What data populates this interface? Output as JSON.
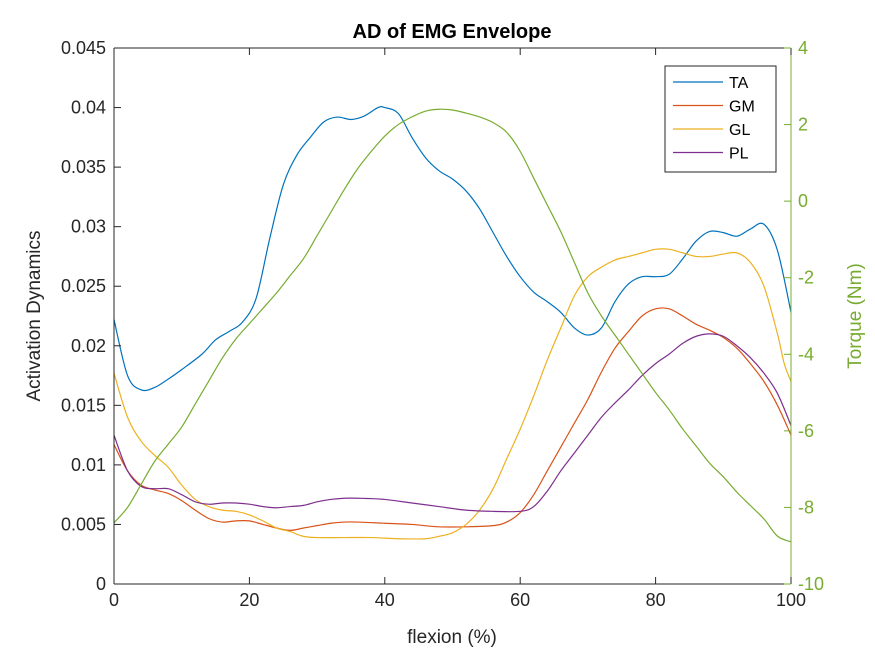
{
  "chart_data": {
    "type": "line",
    "title": "AD of EMG Envelope",
    "xlabel": "flexion (%)",
    "ylabel": "Activation Dynamics",
    "y2label": "Torque (Nm)",
    "xlim": [
      0,
      100
    ],
    "ylim": [
      0,
      0.045
    ],
    "y2lim": [
      -10,
      4
    ],
    "xticks": [
      "0",
      "20",
      "40",
      "60",
      "80",
      "100"
    ],
    "yticks": [
      "0",
      "0.005",
      "0.01",
      "0.015",
      "0.02",
      "0.025",
      "0.03",
      "0.035",
      "0.04",
      "0.045"
    ],
    "y2ticks": [
      "-10",
      "-8",
      "-6",
      "-4",
      "-2",
      "0",
      "2",
      "4"
    ],
    "legend_position": "top-right",
    "grid": false,
    "series": [
      {
        "name": "TA",
        "axis": "left",
        "color": "#0072BD",
        "points": [
          [
            0,
            0.0222
          ],
          [
            2,
            0.0175
          ],
          [
            4,
            0.0163
          ],
          [
            6,
            0.0165
          ],
          [
            8,
            0.0172
          ],
          [
            10,
            0.018
          ],
          [
            13,
            0.0193
          ],
          [
            15,
            0.0205
          ],
          [
            17,
            0.0212
          ],
          [
            19,
            0.022
          ],
          [
            21,
            0.024
          ],
          [
            23,
            0.029
          ],
          [
            25,
            0.0335
          ],
          [
            27,
            0.036
          ],
          [
            29,
            0.0375
          ],
          [
            31,
            0.0388
          ],
          [
            33,
            0.0392
          ],
          [
            35,
            0.039
          ],
          [
            37,
            0.0393
          ],
          [
            39,
            0.04
          ],
          [
            40,
            0.04
          ],
          [
            42,
            0.0395
          ],
          [
            44,
            0.0375
          ],
          [
            46,
            0.0358
          ],
          [
            48,
            0.0347
          ],
          [
            50,
            0.034
          ],
          [
            52,
            0.033
          ],
          [
            54,
            0.0315
          ],
          [
            56,
            0.0295
          ],
          [
            58,
            0.0275
          ],
          [
            60,
            0.0258
          ],
          [
            62,
            0.0245
          ],
          [
            64,
            0.0237
          ],
          [
            66,
            0.0228
          ],
          [
            68,
            0.0215
          ],
          [
            70,
            0.0209
          ],
          [
            72,
            0.0215
          ],
          [
            74,
            0.0237
          ],
          [
            76,
            0.0252
          ],
          [
            78,
            0.0258
          ],
          [
            80,
            0.0258
          ],
          [
            82,
            0.026
          ],
          [
            84,
            0.0273
          ],
          [
            86,
            0.0288
          ],
          [
            88,
            0.0296
          ],
          [
            90,
            0.0295
          ],
          [
            92,
            0.0292
          ],
          [
            94,
            0.0298
          ],
          [
            96,
            0.0302
          ],
          [
            98,
            0.028
          ],
          [
            100,
            0.0228
          ]
        ]
      },
      {
        "name": "GM",
        "axis": "left",
        "color": "#D95319",
        "points": [
          [
            0,
            0.0117
          ],
          [
            2,
            0.0095
          ],
          [
            4,
            0.0083
          ],
          [
            6,
            0.0079
          ],
          [
            8,
            0.0076
          ],
          [
            10,
            0.007
          ],
          [
            12,
            0.0062
          ],
          [
            14,
            0.0055
          ],
          [
            16,
            0.0052
          ],
          [
            18,
            0.0053
          ],
          [
            20,
            0.0053
          ],
          [
            22,
            0.005
          ],
          [
            24,
            0.0047
          ],
          [
            26,
            0.0045
          ],
          [
            28,
            0.0047
          ],
          [
            30,
            0.0049
          ],
          [
            32,
            0.0051
          ],
          [
            34,
            0.0052
          ],
          [
            36,
            0.0052
          ],
          [
            40,
            0.0051
          ],
          [
            44,
            0.005
          ],
          [
            48,
            0.0048
          ],
          [
            52,
            0.0048
          ],
          [
            56,
            0.0049
          ],
          [
            58,
            0.0052
          ],
          [
            60,
            0.006
          ],
          [
            62,
            0.0075
          ],
          [
            64,
            0.0095
          ],
          [
            66,
            0.0115
          ],
          [
            68,
            0.0135
          ],
          [
            70,
            0.0155
          ],
          [
            72,
            0.0178
          ],
          [
            74,
            0.0198
          ],
          [
            76,
            0.0212
          ],
          [
            78,
            0.0225
          ],
          [
            80,
            0.0231
          ],
          [
            82,
            0.0231
          ],
          [
            84,
            0.0225
          ],
          [
            86,
            0.0218
          ],
          [
            88,
            0.0213
          ],
          [
            90,
            0.0207
          ],
          [
            92,
            0.0198
          ],
          [
            94,
            0.0185
          ],
          [
            96,
            0.017
          ],
          [
            98,
            0.015
          ],
          [
            100,
            0.0125
          ]
        ]
      },
      {
        "name": "GL",
        "axis": "left",
        "color": "#EDB120",
        "points": [
          [
            0,
            0.0177
          ],
          [
            2,
            0.014
          ],
          [
            4,
            0.012
          ],
          [
            6,
            0.0108
          ],
          [
            8,
            0.0098
          ],
          [
            10,
            0.0083
          ],
          [
            12,
            0.0071
          ],
          [
            14,
            0.0065
          ],
          [
            16,
            0.0062
          ],
          [
            18,
            0.0061
          ],
          [
            20,
            0.0058
          ],
          [
            22,
            0.0053
          ],
          [
            24,
            0.0047
          ],
          [
            26,
            0.0044
          ],
          [
            28,
            0.004
          ],
          [
            30,
            0.0039
          ],
          [
            34,
            0.0039
          ],
          [
            38,
            0.0039
          ],
          [
            42,
            0.0038
          ],
          [
            46,
            0.0038
          ],
          [
            48,
            0.004
          ],
          [
            50,
            0.0043
          ],
          [
            52,
            0.005
          ],
          [
            54,
            0.0062
          ],
          [
            56,
            0.008
          ],
          [
            58,
            0.0105
          ],
          [
            60,
            0.013
          ],
          [
            62,
            0.0158
          ],
          [
            64,
            0.0188
          ],
          [
            66,
            0.0215
          ],
          [
            68,
            0.0242
          ],
          [
            70,
            0.0258
          ],
          [
            72,
            0.0266
          ],
          [
            74,
            0.0272
          ],
          [
            76,
            0.0275
          ],
          [
            78,
            0.0278
          ],
          [
            80,
            0.0281
          ],
          [
            82,
            0.0281
          ],
          [
            84,
            0.0278
          ],
          [
            86,
            0.0275
          ],
          [
            88,
            0.0275
          ],
          [
            90,
            0.0277
          ],
          [
            92,
            0.0278
          ],
          [
            94,
            0.027
          ],
          [
            96,
            0.025
          ],
          [
            98,
            0.021
          ],
          [
            99,
            0.0185
          ],
          [
            100,
            0.017
          ]
        ]
      },
      {
        "name": "PL",
        "axis": "left",
        "color": "#7E2F8E",
        "points": [
          [
            0,
            0.0125
          ],
          [
            2,
            0.0095
          ],
          [
            4,
            0.0082
          ],
          [
            6,
            0.008
          ],
          [
            8,
            0.008
          ],
          [
            10,
            0.0075
          ],
          [
            12,
            0.0069
          ],
          [
            14,
            0.0067
          ],
          [
            16,
            0.0068
          ],
          [
            18,
            0.0068
          ],
          [
            20,
            0.0067
          ],
          [
            22,
            0.0065
          ],
          [
            24,
            0.0064
          ],
          [
            26,
            0.0065
          ],
          [
            28,
            0.0066
          ],
          [
            30,
            0.0069
          ],
          [
            32,
            0.0071
          ],
          [
            34,
            0.0072
          ],
          [
            36,
            0.0072
          ],
          [
            40,
            0.0071
          ],
          [
            44,
            0.0068
          ],
          [
            48,
            0.0065
          ],
          [
            52,
            0.0062
          ],
          [
            56,
            0.0061
          ],
          [
            60,
            0.0061
          ],
          [
            62,
            0.0065
          ],
          [
            64,
            0.0078
          ],
          [
            66,
            0.0095
          ],
          [
            68,
            0.011
          ],
          [
            70,
            0.0125
          ],
          [
            72,
            0.014
          ],
          [
            74,
            0.0152
          ],
          [
            76,
            0.0163
          ],
          [
            78,
            0.0175
          ],
          [
            80,
            0.0185
          ],
          [
            82,
            0.0193
          ],
          [
            84,
            0.0202
          ],
          [
            86,
            0.0208
          ],
          [
            88,
            0.021
          ],
          [
            90,
            0.0208
          ],
          [
            92,
            0.02
          ],
          [
            94,
            0.019
          ],
          [
            96,
            0.0177
          ],
          [
            98,
            0.016
          ],
          [
            100,
            0.0133
          ]
        ]
      },
      {
        "name": "",
        "axis": "right",
        "color": "#77AC30",
        "points": [
          [
            0,
            -8.4
          ],
          [
            2,
            -8.0
          ],
          [
            4,
            -7.4
          ],
          [
            6,
            -6.8
          ],
          [
            8,
            -6.35
          ],
          [
            10,
            -5.9
          ],
          [
            12,
            -5.3
          ],
          [
            14,
            -4.7
          ],
          [
            16,
            -4.1
          ],
          [
            18,
            -3.6
          ],
          [
            20,
            -3.2
          ],
          [
            22,
            -2.8
          ],
          [
            24,
            -2.4
          ],
          [
            26,
            -1.95
          ],
          [
            28,
            -1.5
          ],
          [
            30,
            -0.9
          ],
          [
            32,
            -0.3
          ],
          [
            34,
            0.3
          ],
          [
            36,
            0.85
          ],
          [
            38,
            1.3
          ],
          [
            40,
            1.7
          ],
          [
            42,
            2.0
          ],
          [
            44,
            2.2
          ],
          [
            46,
            2.35
          ],
          [
            48,
            2.4
          ],
          [
            50,
            2.38
          ],
          [
            52,
            2.3
          ],
          [
            54,
            2.2
          ],
          [
            56,
            2.05
          ],
          [
            58,
            1.8
          ],
          [
            60,
            1.3
          ],
          [
            62,
            0.6
          ],
          [
            64,
            -0.1
          ],
          [
            66,
            -0.8
          ],
          [
            68,
            -1.6
          ],
          [
            70,
            -2.4
          ],
          [
            72,
            -3.0
          ],
          [
            74,
            -3.5
          ],
          [
            76,
            -4.0
          ],
          [
            78,
            -4.5
          ],
          [
            80,
            -5.0
          ],
          [
            82,
            -5.45
          ],
          [
            84,
            -5.95
          ],
          [
            86,
            -6.4
          ],
          [
            88,
            -6.85
          ],
          [
            90,
            -7.2
          ],
          [
            92,
            -7.6
          ],
          [
            94,
            -7.95
          ],
          [
            96,
            -8.3
          ],
          [
            98,
            -8.75
          ],
          [
            100,
            -8.9
          ]
        ]
      }
    ]
  }
}
